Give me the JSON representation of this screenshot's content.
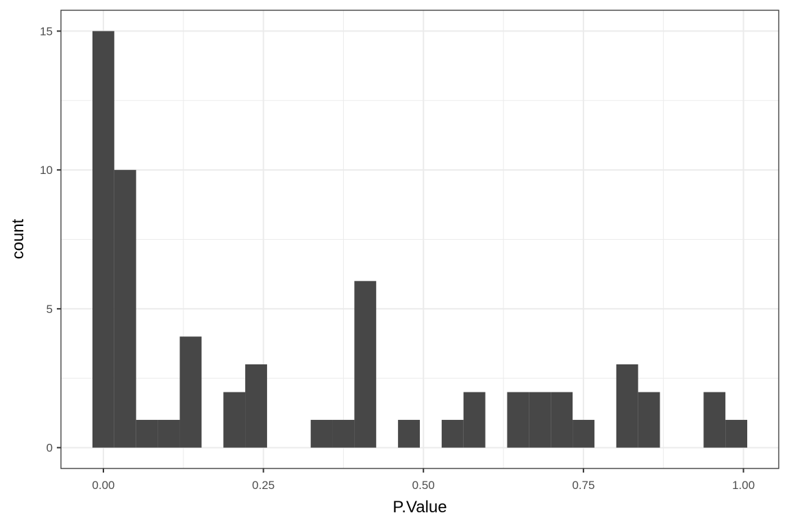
{
  "chart_data": {
    "type": "bar",
    "subtype": "histogram",
    "title": "",
    "xlabel": "P.Value",
    "ylabel": "count",
    "bin_width": 0.0341,
    "bins": [
      {
        "x0": -0.0171,
        "x1": 0.017,
        "count": 15
      },
      {
        "x0": 0.017,
        "x1": 0.0511,
        "count": 10
      },
      {
        "x0": 0.0511,
        "x1": 0.0852,
        "count": 1
      },
      {
        "x0": 0.0852,
        "x1": 0.1193,
        "count": 1
      },
      {
        "x0": 0.1193,
        "x1": 0.1534,
        "count": 4
      },
      {
        "x0": 0.1534,
        "x1": 0.1875,
        "count": 0
      },
      {
        "x0": 0.1875,
        "x1": 0.2216,
        "count": 2
      },
      {
        "x0": 0.2216,
        "x1": 0.2557,
        "count": 3
      },
      {
        "x0": 0.2557,
        "x1": 0.2898,
        "count": 0
      },
      {
        "x0": 0.2898,
        "x1": 0.3239,
        "count": 0
      },
      {
        "x0": 0.3239,
        "x1": 0.358,
        "count": 1
      },
      {
        "x0": 0.358,
        "x1": 0.3921,
        "count": 1
      },
      {
        "x0": 0.3921,
        "x1": 0.4262,
        "count": 6
      },
      {
        "x0": 0.4262,
        "x1": 0.4603,
        "count": 0
      },
      {
        "x0": 0.4603,
        "x1": 0.4944,
        "count": 1
      },
      {
        "x0": 0.4944,
        "x1": 0.5285,
        "count": 0
      },
      {
        "x0": 0.5285,
        "x1": 0.5626,
        "count": 1
      },
      {
        "x0": 0.5626,
        "x1": 0.5967,
        "count": 2
      },
      {
        "x0": 0.5967,
        "x1": 0.6308,
        "count": 0
      },
      {
        "x0": 0.6308,
        "x1": 0.6649,
        "count": 2
      },
      {
        "x0": 0.6649,
        "x1": 0.699,
        "count": 2
      },
      {
        "x0": 0.699,
        "x1": 0.7331,
        "count": 2
      },
      {
        "x0": 0.7331,
        "x1": 0.7672,
        "count": 1
      },
      {
        "x0": 0.7672,
        "x1": 0.8013,
        "count": 0
      },
      {
        "x0": 0.8013,
        "x1": 0.8354,
        "count": 3
      },
      {
        "x0": 0.8354,
        "x1": 0.8695,
        "count": 2
      },
      {
        "x0": 0.8695,
        "x1": 0.9036,
        "count": 0
      },
      {
        "x0": 0.9036,
        "x1": 0.9377,
        "count": 0
      },
      {
        "x0": 0.9377,
        "x1": 0.9718,
        "count": 2
      },
      {
        "x0": 0.9718,
        "x1": 1.0059,
        "count": 1
      }
    ],
    "xlim": [
      -0.0663,
      1.0551
    ],
    "ylim": [
      -0.75,
      15.75
    ],
    "x_ticks": [
      0,
      0.25,
      0.5,
      0.75,
      1
    ],
    "x_tick_labels": [
      "0.00",
      "0.25",
      "0.50",
      "0.75",
      "1.00"
    ],
    "y_ticks": [
      0,
      5,
      10,
      15
    ],
    "y_tick_labels": [
      "0",
      "5",
      "10",
      "15"
    ],
    "grid": true,
    "legend": "none",
    "colors": {
      "bar": "#474747",
      "grid": "#ebebeb",
      "panel_border": "#333333",
      "tick_label": "#4d4d4d",
      "axis_title": "#000000",
      "background": "#ffffff"
    }
  }
}
